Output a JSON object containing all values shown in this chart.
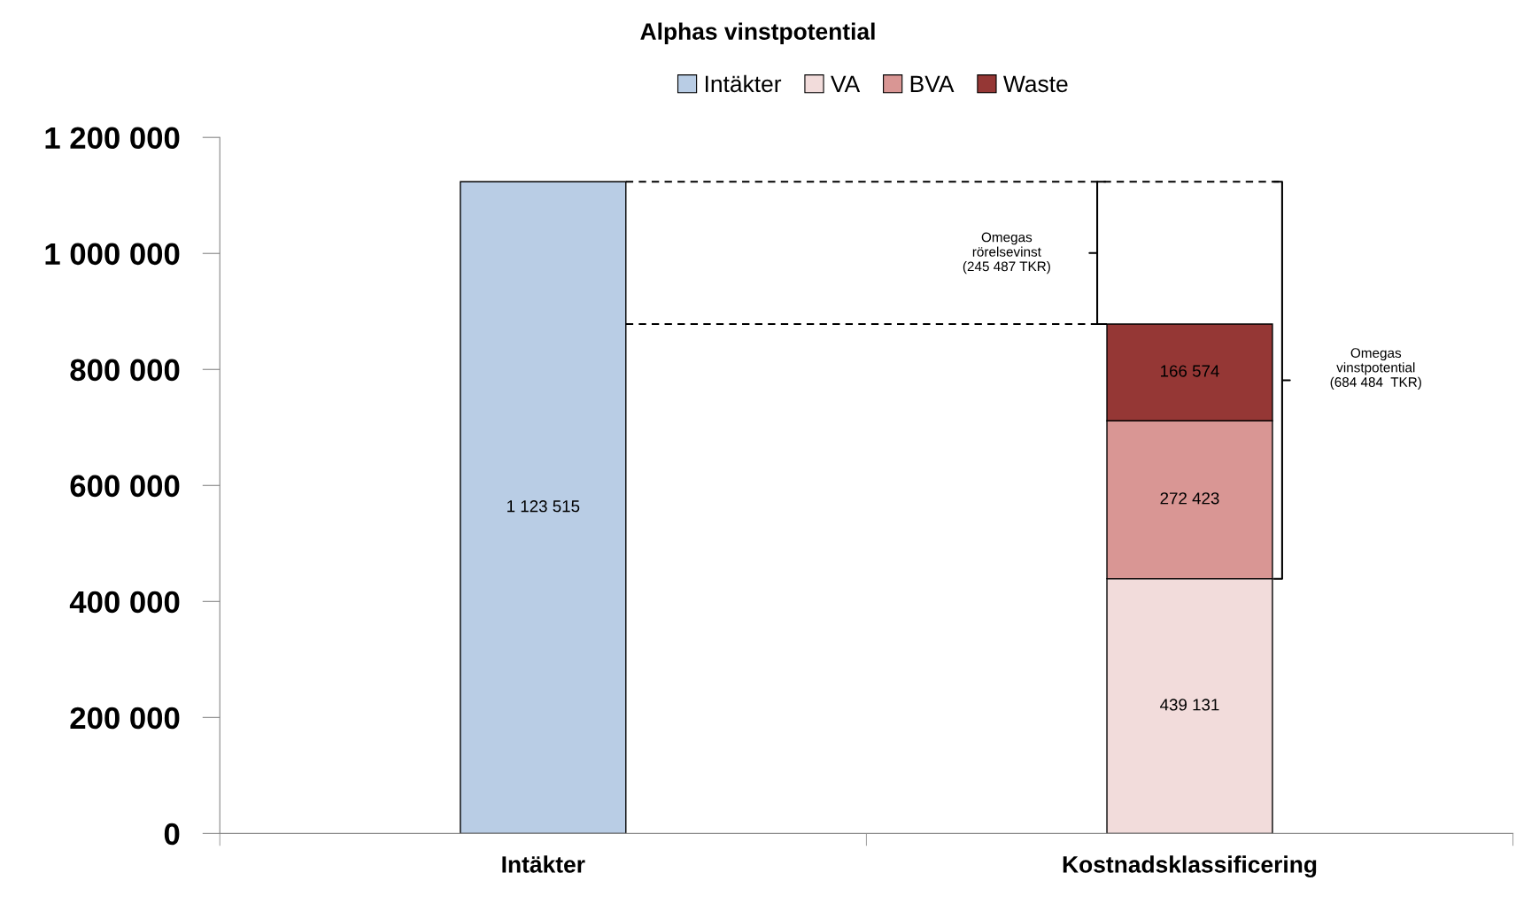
{
  "chart_data": {
    "type": "bar",
    "title": "Alphas vinstpotential",
    "stacked": true,
    "categories": [
      "Intäkter",
      "Kostnadsklassificering"
    ],
    "series": [
      {
        "name": "Intäkter",
        "color": "#b9cde5",
        "values": [
          1123515,
          null
        ]
      },
      {
        "name": "VA",
        "color": "#f2dcdb",
        "values": [
          null,
          439131
        ]
      },
      {
        "name": "BVA",
        "color": "#d99694",
        "values": [
          null,
          272423
        ]
      },
      {
        "name": "Waste",
        "color": "#953735",
        "values": [
          null,
          166574
        ]
      }
    ],
    "ylim": [
      0,
      1200000
    ],
    "yticks": [
      0,
      {
        "value": 200000,
        "label": "200 000"
      },
      {
        "value": 400000,
        "label": "400 000"
      },
      {
        "value": 600000,
        "label": "600 000"
      },
      {
        "value": 800000,
        "label": "800 000"
      },
      {
        "value": 1000000,
        "label": "1 000 000"
      },
      {
        "value": 1200000,
        "label": "1 200 000"
      }
    ],
    "data_labels": true,
    "value_labels": [
      [
        "1 123 515",
        null
      ],
      [
        null,
        "439 131"
      ],
      [
        null,
        "272 423"
      ],
      [
        null,
        "166 574"
      ]
    ],
    "ref_lines": [
      {
        "axis": "y",
        "value": 1123515,
        "color": "#000000",
        "line_style": "dashed"
      },
      {
        "axis": "y",
        "value": 878128,
        "color": "#000000",
        "line_style": "dashed"
      }
    ],
    "annotations": [
      "Omegas\nrörelsevinst\n(245 487 TKR)",
      "Omegas\nvinstpotential\n(684 484  TKR)"
    ],
    "legend": "top",
    "grid": false
  }
}
